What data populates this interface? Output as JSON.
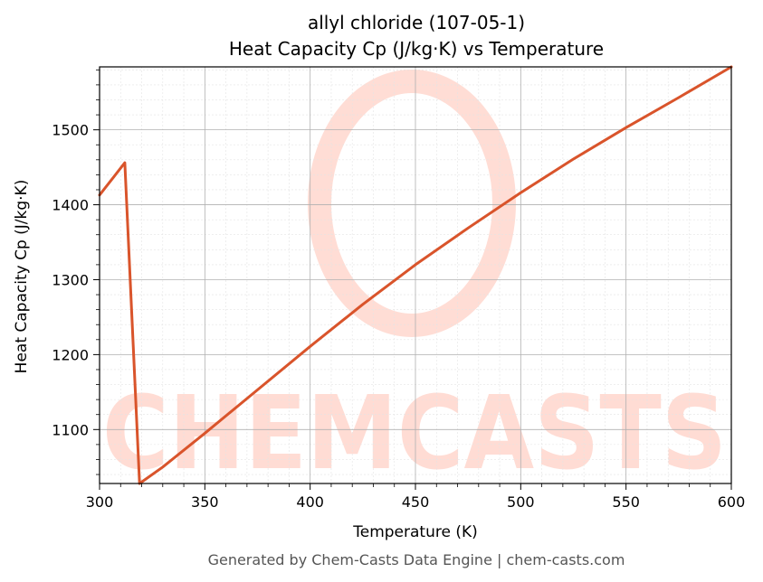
{
  "chart_data": {
    "type": "line",
    "title": "allyl chloride (107-05-1)",
    "subtitle": "Heat Capacity Cp (J/kg·K) vs Temperature",
    "xlabel": "Temperature (K)",
    "ylabel": "Heat Capacity Cp (J/kg·K)",
    "xlim": [
      300,
      600
    ],
    "ylim": [
      1028,
      1584
    ],
    "xticks": [
      300,
      350,
      400,
      450,
      500,
      550,
      600
    ],
    "yticks": [
      1100,
      1200,
      1300,
      1400,
      1500
    ],
    "grid": true,
    "line_color": "#d9542b",
    "watermark_color": "#ffd9d0",
    "series": [
      {
        "x": [
          300,
          312,
          319,
          330,
          350,
          375,
          400,
          425,
          450,
          475,
          500,
          525,
          550,
          575,
          600
        ],
        "values": [
          1413,
          1456,
          1028,
          1050,
          1095,
          1153,
          1211,
          1267,
          1320,
          1369,
          1416,
          1461,
          1503,
          1543,
          1584
        ]
      }
    ]
  },
  "watermark": {
    "text": "CHEMCASTS"
  },
  "footer": "Generated by Chem-Casts Data Engine | chem-casts.com"
}
